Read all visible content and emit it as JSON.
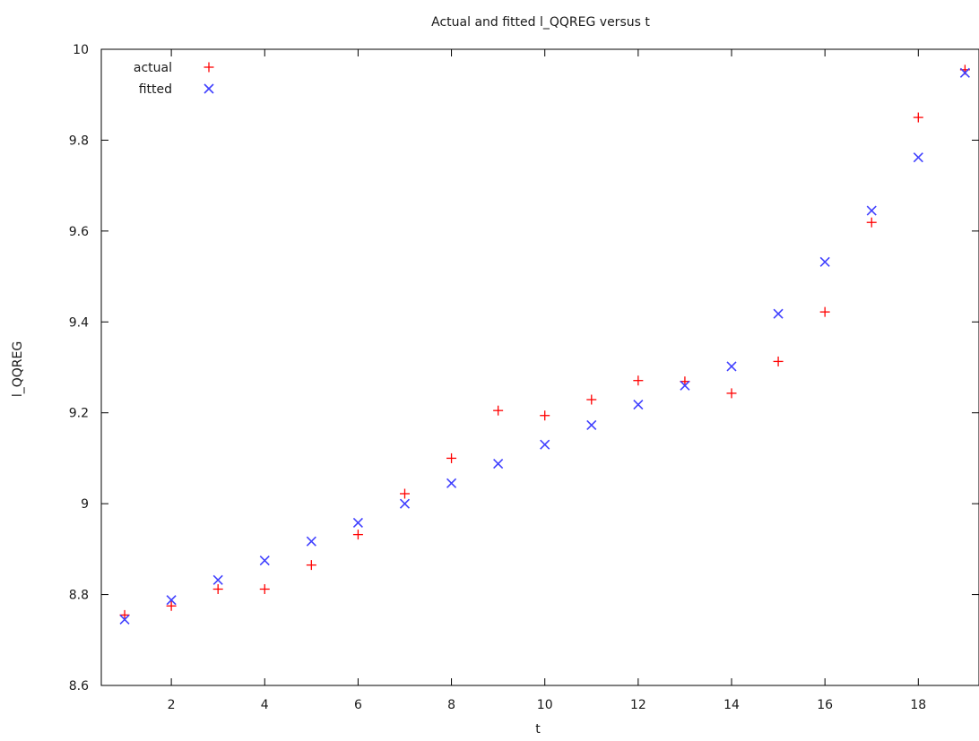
{
  "chart_data": {
    "type": "scatter",
    "title": "Actual and fitted l_QQREG versus t",
    "xlabel": "t",
    "ylabel": "l_QQREG",
    "xlim": [
      0.5,
      19.3
    ],
    "ylim": [
      8.6,
      10.0
    ],
    "x_ticks": [
      2,
      4,
      6,
      8,
      10,
      12,
      14,
      16,
      18
    ],
    "y_ticks": [
      8.6,
      8.8,
      9.0,
      9.2,
      9.4,
      9.6,
      9.8,
      10.0
    ],
    "x_tick_labels": [
      "2",
      "4",
      "6",
      "8",
      "10",
      "12",
      "14",
      "16",
      "18"
    ],
    "y_tick_labels": [
      "8.6",
      "8.8",
      "9",
      "9.2",
      "9.4",
      "9.6",
      "9.8",
      "10"
    ],
    "grid": false,
    "legend_position": "top-left",
    "x": [
      1,
      2,
      3,
      4,
      5,
      6,
      7,
      8,
      9,
      10,
      11,
      12,
      13,
      14,
      15,
      16,
      17,
      18,
      19
    ],
    "series": [
      {
        "name": "actual",
        "marker": "plus",
        "color": "#ff0000",
        "values": [
          8.755,
          8.775,
          8.812,
          8.812,
          8.865,
          8.932,
          9.022,
          9.1,
          9.205,
          9.194,
          9.229,
          9.271,
          9.269,
          9.243,
          9.313,
          9.422,
          9.619,
          9.85,
          9.955
        ]
      },
      {
        "name": "fitted",
        "marker": "cross",
        "color": "#4040ff",
        "values": [
          8.745,
          8.788,
          8.832,
          8.875,
          8.917,
          8.958,
          9.0,
          9.045,
          9.088,
          9.13,
          9.173,
          9.218,
          9.26,
          9.302,
          9.418,
          9.532,
          9.645,
          9.762,
          9.948
        ]
      }
    ]
  }
}
